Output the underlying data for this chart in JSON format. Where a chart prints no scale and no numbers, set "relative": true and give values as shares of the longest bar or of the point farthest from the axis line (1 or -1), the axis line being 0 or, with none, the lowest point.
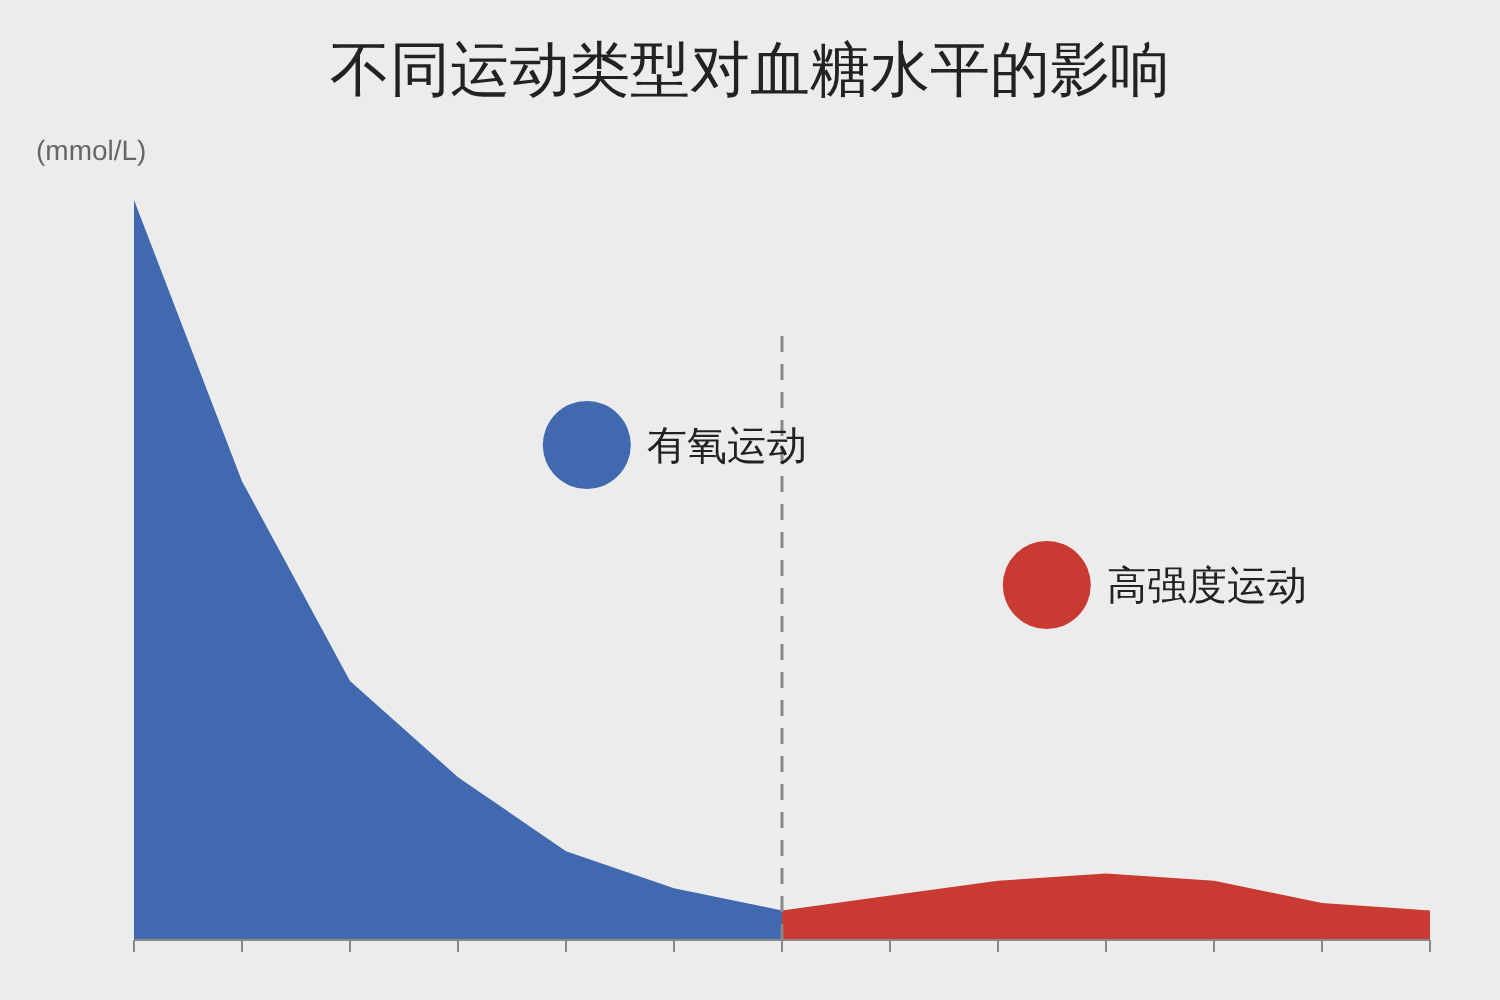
{
  "chart_data": {
    "type": "area",
    "title": "不同运动类型对血糖水平的影响",
    "ylabel": "(mmol/L)",
    "relative": true,
    "categories": [
      null,
      null,
      null,
      null,
      null,
      null,
      null,
      null,
      null,
      null,
      null,
      null,
      null
    ],
    "series": [
      {
        "name": "有氧运动",
        "color": "#4169b0",
        "values": [
          1.0,
          0.62,
          0.35,
          0.22,
          0.12,
          0.07,
          0.04,
          null,
          null,
          null,
          null,
          null,
          null
        ]
      },
      {
        "name": "高强度运动",
        "color": "#c83a32",
        "values": [
          null,
          null,
          null,
          null,
          null,
          null,
          0.04,
          0.06,
          0.08,
          0.09,
          0.08,
          0.05,
          0.04
        ]
      }
    ],
    "ref_lines": [
      {
        "axis": "x",
        "line_style": "dashed",
        "color": "#888888"
      }
    ],
    "legend": "right"
  }
}
